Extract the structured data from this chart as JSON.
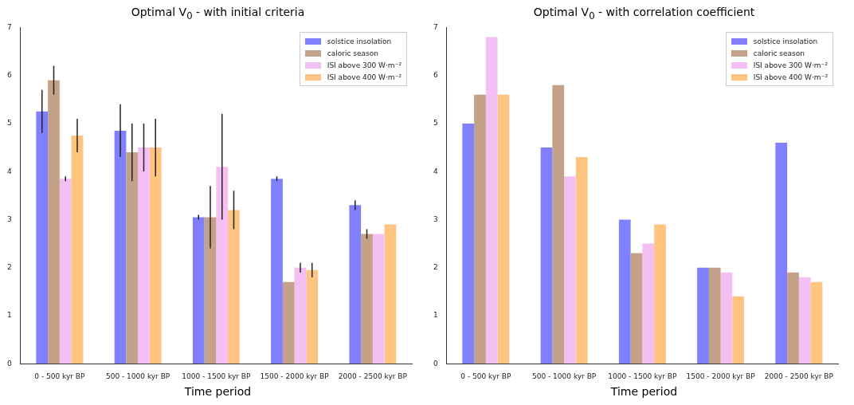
{
  "chart_data": [
    {
      "type": "bar",
      "title": "Optimal V$_{0}$ - with initial criteria",
      "xlabel": "Time period",
      "categories": [
        "0 - 500 kyr BP",
        "500 - 1000 kyr BP",
        "1000 - 1500 kyr BP",
        "1500 - 2000 kyr BP",
        "2000 - 2500 kyr BP"
      ],
      "series": [
        {
          "name": "solstice insolation",
          "color": "#8080ff",
          "values": [
            5.25,
            4.85,
            3.05,
            3.85,
            3.3
          ],
          "errors": [
            [
              4.8,
              5.7
            ],
            [
              4.3,
              5.4
            ],
            [
              3.0,
              3.1
            ],
            [
              3.8,
              3.9
            ],
            [
              3.2,
              3.4
            ]
          ]
        },
        {
          "name": "caloric season",
          "color": "#c4a189",
          "values": [
            5.9,
            4.4,
            3.05,
            1.7,
            2.7
          ],
          "errors": [
            [
              5.6,
              6.2
            ],
            [
              3.8,
              5.0
            ],
            [
              2.4,
              3.7
            ],
            null,
            [
              2.6,
              2.8
            ]
          ]
        },
        {
          "name": "ISI above 300 W·m⁻²",
          "color": "#f4c0f4",
          "values": [
            3.85,
            4.5,
            4.1,
            2.0,
            2.7
          ],
          "errors": [
            [
              3.8,
              3.9
            ],
            [
              4.0,
              5.0
            ],
            [
              3.0,
              5.2
            ],
            [
              1.9,
              2.1
            ],
            null
          ]
        },
        {
          "name": "ISI above 400 W·m⁻²",
          "color": "#ffc580",
          "values": [
            4.75,
            4.5,
            3.2,
            1.95,
            2.9
          ],
          "errors": [
            [
              4.4,
              5.1
            ],
            [
              3.9,
              5.1
            ],
            [
              2.8,
              3.6
            ],
            [
              1.8,
              2.1
            ],
            null
          ]
        }
      ],
      "ylim": [
        0,
        7
      ],
      "yticks": [
        0,
        1,
        2,
        3,
        4,
        5,
        6,
        7
      ],
      "legend": "top right"
    },
    {
      "type": "bar",
      "title": "Optimal V$_{0}$ - with correlation coefficient",
      "xlabel": "Time period",
      "categories": [
        "0 - 500 kyr BP",
        "500 - 1000 kyr BP",
        "1000 - 1500 kyr BP",
        "1500 - 2000 kyr BP",
        "2000 - 2500 kyr BP"
      ],
      "series": [
        {
          "name": "solstice insolation",
          "color": "#8080ff",
          "values": [
            5.0,
            4.5,
            3.0,
            2.0,
            4.6
          ]
        },
        {
          "name": "caloric season",
          "color": "#c4a189",
          "values": [
            5.6,
            5.8,
            2.3,
            2.0,
            1.9
          ]
        },
        {
          "name": "ISI above 300 W·m⁻²",
          "color": "#f4c0f4",
          "values": [
            6.8,
            3.9,
            2.5,
            1.9,
            1.8
          ]
        },
        {
          "name": "ISI above 400 W·m⁻²",
          "color": "#ffc580",
          "values": [
            5.6,
            4.3,
            2.9,
            1.4,
            1.7
          ]
        }
      ],
      "ylim": [
        0,
        7
      ],
      "yticks": [
        0,
        1,
        2,
        3,
        4,
        5,
        6,
        7
      ],
      "legend": "top right"
    }
  ]
}
